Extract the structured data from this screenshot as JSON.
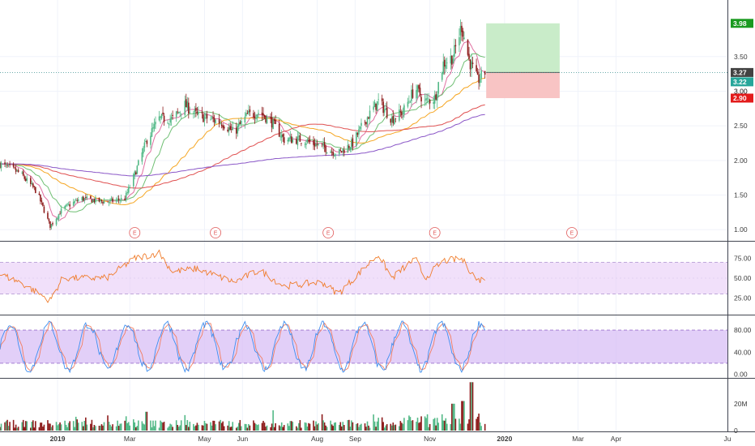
{
  "colors": {
    "up": "#53b987",
    "down": "#8e1c1c",
    "rsi": "#f07c2b",
    "rsi_band": "#e7ccf7",
    "stoch_band": "#d8bff5",
    "stoch_k": "#3f8ff0",
    "stoch_d": "#f27e62",
    "ma_fast": "#e06ea0",
    "ma_mid": "#6fbf73",
    "ma_slow": "#f5a623",
    "ma_long": "#e05050",
    "ma_vlong": "#8a56c7",
    "profit": "#c9ecc9",
    "loss": "#f8c4c4",
    "badge_target": "#1a9a20",
    "badge_stop": "#e31b1b",
    "badge_last": "#424242",
    "badge_ma": "#26a69a",
    "panel_border": "#434651",
    "earnings": "#e05a5a"
  },
  "x_axis": {
    "labels": [
      "2019",
      "Mar",
      "May",
      "Jun",
      "Aug",
      "Sep",
      "Nov",
      "2020",
      "Mar",
      "Apr",
      "Ju"
    ]
  },
  "price_axis": {
    "ticks": [
      "3.50",
      "3.00",
      "2.50",
      "2.00",
      "1.50",
      "1.00"
    ],
    "badges": {
      "target": "3.98",
      "last": "3.27",
      "ma": "3.22",
      "stop": "2.90",
      "hidden": "3.00"
    }
  },
  "rsi_axis": {
    "ticks": [
      "75.00",
      "50.00",
      "25.00"
    ]
  },
  "stoch_axis": {
    "ticks": [
      "80.00",
      "40.00",
      "0.00"
    ]
  },
  "volume_axis": {
    "ticks": [
      "20M",
      "0"
    ]
  },
  "earnings": {
    "label": "E",
    "count": 5
  },
  "chart_data": {
    "type": "candlestick",
    "x_range": [
      "2018-11-15",
      "2020-07-01"
    ],
    "price": {
      "ylim": [
        0.85,
        4.2
      ],
      "waypoints": [
        [
          "2018-11-15",
          1.95
        ],
        [
          "2018-12-01",
          1.82
        ],
        [
          "2018-12-15",
          1.55
        ],
        [
          "2018-12-26",
          1.05
        ],
        [
          "2019-01-05",
          1.3
        ],
        [
          "2019-01-20",
          1.45
        ],
        [
          "2019-02-10",
          1.4
        ],
        [
          "2019-02-25",
          1.45
        ],
        [
          "2019-03-05",
          1.8
        ],
        [
          "2019-03-15",
          2.3
        ],
        [
          "2019-03-25",
          2.6
        ],
        [
          "2019-04-05",
          2.6
        ],
        [
          "2019-04-15",
          2.8
        ],
        [
          "2019-04-25",
          2.65
        ],
        [
          "2019-05-15",
          2.55
        ],
        [
          "2019-05-25",
          2.4
        ],
        [
          "2019-06-05",
          2.65
        ],
        [
          "2019-06-15",
          2.7
        ],
        [
          "2019-06-25",
          2.55
        ],
        [
          "2019-07-05",
          2.3
        ],
        [
          "2019-07-20",
          2.3
        ],
        [
          "2019-08-05",
          2.2
        ],
        [
          "2019-08-18",
          2.1
        ],
        [
          "2019-08-30",
          2.25
        ],
        [
          "2019-09-10",
          2.6
        ],
        [
          "2019-09-20",
          2.85
        ],
        [
          "2019-10-01",
          2.6
        ],
        [
          "2019-10-10",
          2.7
        ],
        [
          "2019-10-20",
          3.05
        ],
        [
          "2019-10-28",
          2.85
        ],
        [
          "2019-11-05",
          2.9
        ],
        [
          "2019-11-12",
          3.4
        ],
        [
          "2019-11-20",
          3.5
        ],
        [
          "2019-11-27",
          3.95
        ],
        [
          "2019-12-03",
          3.45
        ],
        [
          "2019-12-10",
          3.15
        ],
        [
          "2019-12-16",
          3.27
        ]
      ],
      "last_date": "2019-12-16",
      "last_close": 3.27,
      "trade": {
        "start": "2019-12-17",
        "end": "2020-02-15",
        "entry": 3.27,
        "target": 3.98,
        "stop": 2.9
      }
    },
    "moving_averages": [
      {
        "periods": 9,
        "color_key": "ma_fast"
      },
      {
        "periods": 20,
        "color_key": "ma_mid"
      },
      {
        "periods": 50,
        "color_key": "ma_slow"
      },
      {
        "periods": 100,
        "color_key": "ma_long"
      },
      {
        "periods": 200,
        "color_key": "ma_vlong"
      }
    ],
    "earnings_dates": [
      "2019-03-05",
      "2019-05-10",
      "2019-08-10",
      "2019-11-05",
      "2020-02-25"
    ],
    "rsi": {
      "ylim": [
        5,
        95
      ],
      "bands": [
        30,
        70
      ],
      "waypoints": [
        [
          "2018-11-15",
          55
        ],
        [
          "2018-12-01",
          45
        ],
        [
          "2018-12-26",
          22
        ],
        [
          "2019-01-05",
          50
        ],
        [
          "2019-02-10",
          50
        ],
        [
          "2019-03-05",
          75
        ],
        [
          "2019-03-25",
          82
        ],
        [
          "2019-04-05",
          58
        ],
        [
          "2019-04-25",
          62
        ],
        [
          "2019-05-25",
          45
        ],
        [
          "2019-06-15",
          60
        ],
        [
          "2019-07-05",
          40
        ],
        [
          "2019-08-05",
          45
        ],
        [
          "2019-08-18",
          30
        ],
        [
          "2019-09-10",
          65
        ],
        [
          "2019-09-20",
          80
        ],
        [
          "2019-10-01",
          50
        ],
        [
          "2019-10-20",
          75
        ],
        [
          "2019-10-28",
          50
        ],
        [
          "2019-11-12",
          72
        ],
        [
          "2019-11-27",
          74
        ],
        [
          "2019-12-10",
          47
        ],
        [
          "2019-12-16",
          50
        ]
      ]
    },
    "stochastic": {
      "ylim": [
        -5,
        105
      ],
      "bands": [
        20,
        80
      ],
      "cycle_days": 32
    },
    "volume": {
      "ylim": [
        0,
        38
      ],
      "unit": "M",
      "spikes": [
        [
          "2019-12-05",
          36
        ],
        [
          "2019-11-28",
          22
        ],
        [
          "2019-11-20",
          20
        ],
        [
          "2019-03-15",
          14
        ],
        [
          "2019-09-15",
          12
        ]
      ]
    }
  }
}
